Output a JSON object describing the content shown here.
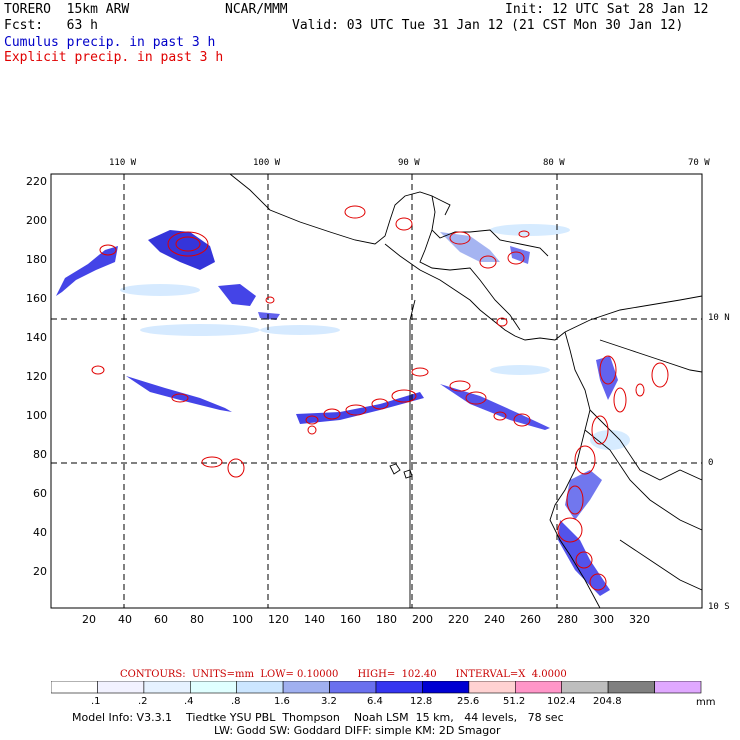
{
  "header": {
    "model": "TORERO  15km ARW",
    "org": "NCAR/MMM",
    "init": "Init: 12 UTC Sat 28 Jan 12",
    "fcst": "Fcst:   63 h",
    "valid": "Valid: 03 UTC Tue 31 Jan 12 (21 CST Mon 30 Jan 12)",
    "legend_cumulus": "Cumulus precip. in past 3 h",
    "legend_explicit": "Explicit precip. in past 3 h"
  },
  "colors": {
    "cumulus": "#0000c8",
    "explicit": "#e00000"
  },
  "map": {
    "lon_labels": [
      "110 W",
      "100 W",
      "90 W",
      "80 W",
      "70 W"
    ],
    "lat_labels": [
      "10 N",
      "0",
      "10 S"
    ],
    "x_ticks": [
      "20",
      "40",
      "60",
      "80",
      "100",
      "120",
      "140",
      "160",
      "180",
      "200",
      "220",
      "240",
      "260",
      "280",
      "300",
      "320"
    ],
    "y_ticks": [
      "220",
      "200",
      "180",
      "160",
      "140",
      "120",
      "100",
      "80",
      "60",
      "40",
      "20"
    ]
  },
  "contour_info": {
    "text": "CONTOURS:  UNITS=mm  LOW= 0.10000      HIGH=  102.40      INTERVAL=X  4.0000"
  },
  "colorbar": {
    "labels": [
      ".1",
      ".2",
      ".4",
      ".8",
      "1.6",
      "3.2",
      "6.4",
      "12.8",
      "25.6",
      "51.2",
      "102.4",
      "204.8"
    ],
    "unit": "mm",
    "colors": [
      "#ffffff",
      "#f2f2ff",
      "#e6f2ff",
      "#e0ffff",
      "#cce6ff",
      "#a0b0f0",
      "#6a70ee",
      "#3535f0",
      "#0000d2",
      "#ffd2d2",
      "#ff96c8",
      "#bebebe",
      "#808080",
      "#e0a8ff"
    ]
  },
  "footer": {
    "line1": "Model Info: V3.3.1    Tiedtke YSU PBL  Thompson    Noah LSM  15 km,   44 levels,   78 sec",
    "line2": "LW: Godd SW: Goddard DIFF: simple KM: 2D Smagor"
  }
}
